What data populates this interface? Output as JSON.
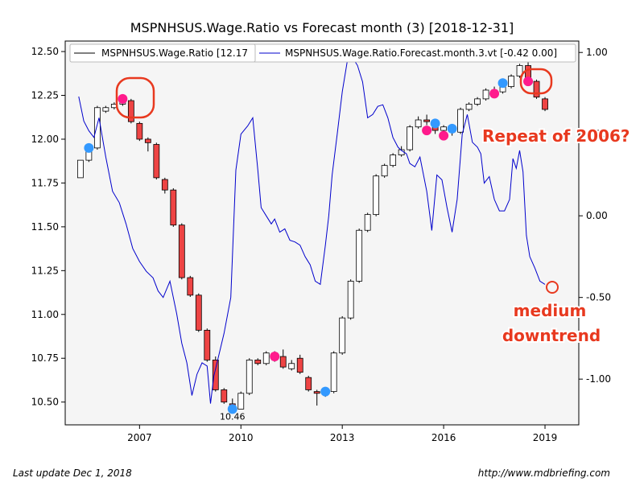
{
  "chart_data": {
    "type": "candlestick+line",
    "title": "MSPNHSUS.Wage.Ratio vs Forecast month (3)  [2018-12-31]",
    "legend": [
      {
        "label": "MSPNHSUS.Wage.Ratio [12.17",
        "color": "#000000"
      },
      {
        "label": "MSPNHSUS.Wage.Ratio.Forecast.month.3.vt [-0.42 0.00]",
        "color": "#0000cc"
      }
    ],
    "legend_position": "top",
    "x_ticks": [
      "2007",
      "2010",
      "2013",
      "2016",
      "2019"
    ],
    "x_range": [
      2004.8,
      2020.0
    ],
    "y_left": {
      "ticks": [
        "12.50",
        "12.25",
        "12.00",
        "11.75",
        "11.50",
        "11.25",
        "11.00",
        "10.75",
        "10.50"
      ],
      "range": [
        10.37,
        12.56
      ]
    },
    "y_right": {
      "ticks": [
        "1.00",
        "0.50",
        "0.00",
        "-0.50",
        "-1.00"
      ],
      "range": [
        -1.28,
        1.07
      ]
    },
    "grid": false,
    "min_label": "10.46",
    "candles": [
      [
        2005.25,
        11.78,
        11.88,
        11.88,
        11.78,
        "w"
      ],
      [
        2005.5,
        11.88,
        11.95,
        11.96,
        11.87,
        "w"
      ],
      [
        2005.75,
        11.95,
        12.18,
        12.19,
        11.94,
        "w"
      ],
      [
        2006.0,
        12.18,
        12.16,
        12.19,
        12.15,
        "w"
      ],
      [
        2006.25,
        12.18,
        12.2,
        12.21,
        12.17,
        "w"
      ],
      [
        2006.5,
        12.2,
        12.23,
        12.24,
        12.19,
        "w"
      ],
      [
        2006.75,
        12.22,
        12.1,
        12.23,
        12.09,
        "r"
      ],
      [
        2007.0,
        12.09,
        12.0,
        12.1,
        11.99,
        "r"
      ],
      [
        2007.25,
        12.0,
        11.98,
        12.01,
        11.93,
        "r"
      ],
      [
        2007.5,
        11.97,
        11.78,
        11.98,
        11.77,
        "r"
      ],
      [
        2007.75,
        11.77,
        11.71,
        11.78,
        11.69,
        "r"
      ],
      [
        2008.0,
        11.71,
        11.51,
        11.72,
        11.5,
        "r"
      ],
      [
        2008.25,
        11.51,
        11.21,
        11.52,
        11.2,
        "r"
      ],
      [
        2008.5,
        11.21,
        11.11,
        11.22,
        11.1,
        "r"
      ],
      [
        2008.75,
        11.11,
        10.91,
        11.12,
        10.9,
        "r"
      ],
      [
        2009.0,
        10.91,
        10.74,
        10.92,
        10.73,
        "r"
      ],
      [
        2009.25,
        10.74,
        10.57,
        10.76,
        10.56,
        "r"
      ],
      [
        2009.5,
        10.57,
        10.5,
        10.58,
        10.49,
        "r"
      ],
      [
        2009.75,
        10.49,
        10.48,
        10.52,
        10.46,
        "r"
      ],
      [
        2010.0,
        10.46,
        10.55,
        10.56,
        10.46,
        "w"
      ],
      [
        2010.25,
        10.55,
        10.74,
        10.75,
        10.54,
        "w"
      ],
      [
        2010.5,
        10.74,
        10.72,
        10.75,
        10.71,
        "r"
      ],
      [
        2010.75,
        10.72,
        10.78,
        10.79,
        10.71,
        "w"
      ],
      [
        2011.0,
        10.78,
        10.74,
        10.79,
        10.73,
        "r"
      ],
      [
        2011.25,
        10.76,
        10.7,
        10.8,
        10.69,
        "r"
      ],
      [
        2011.5,
        10.69,
        10.72,
        10.74,
        10.68,
        "w"
      ],
      [
        2011.75,
        10.75,
        10.67,
        10.77,
        10.66,
        "r"
      ],
      [
        2012.0,
        10.64,
        10.57,
        10.65,
        10.56,
        "r"
      ],
      [
        2012.25,
        10.56,
        10.55,
        10.57,
        10.48,
        "r"
      ],
      [
        2012.5,
        10.55,
        10.55,
        10.57,
        10.53,
        "w"
      ],
      [
        2012.75,
        10.56,
        10.78,
        10.79,
        10.55,
        "w"
      ],
      [
        2013.0,
        10.78,
        10.98,
        10.99,
        10.77,
        "w"
      ],
      [
        2013.25,
        10.98,
        11.19,
        11.2,
        10.97,
        "w"
      ],
      [
        2013.5,
        11.19,
        11.48,
        11.49,
        11.18,
        "w"
      ],
      [
        2013.75,
        11.48,
        11.57,
        11.58,
        11.47,
        "w"
      ],
      [
        2014.0,
        11.57,
        11.79,
        11.8,
        11.56,
        "w"
      ],
      [
        2014.25,
        11.79,
        11.85,
        11.86,
        11.78,
        "w"
      ],
      [
        2014.5,
        11.85,
        11.91,
        11.92,
        11.84,
        "w"
      ],
      [
        2014.75,
        11.91,
        11.94,
        11.96,
        11.9,
        "w"
      ],
      [
        2015.0,
        11.94,
        12.07,
        12.08,
        11.93,
        "w"
      ],
      [
        2015.25,
        12.07,
        12.11,
        12.13,
        12.06,
        "w"
      ],
      [
        2015.5,
        12.11,
        12.1,
        12.14,
        12.08,
        "r"
      ],
      [
        2015.75,
        12.1,
        12.05,
        12.11,
        12.03,
        "r"
      ],
      [
        2016.0,
        12.05,
        12.07,
        12.08,
        12.0,
        "w"
      ],
      [
        2016.25,
        12.07,
        12.04,
        12.08,
        12.02,
        "r"
      ],
      [
        2016.5,
        12.04,
        12.17,
        12.18,
        12.03,
        "w"
      ],
      [
        2016.75,
        12.17,
        12.2,
        12.21,
        12.16,
        "w"
      ],
      [
        2017.0,
        12.2,
        12.23,
        12.24,
        12.19,
        "w"
      ],
      [
        2017.25,
        12.23,
        12.28,
        12.29,
        12.22,
        "w"
      ],
      [
        2017.5,
        12.28,
        12.27,
        12.3,
        12.26,
        "r"
      ],
      [
        2017.75,
        12.27,
        12.3,
        12.31,
        12.26,
        "w"
      ],
      [
        2018.0,
        12.3,
        12.36,
        12.37,
        12.29,
        "w"
      ],
      [
        2018.25,
        12.36,
        12.42,
        12.43,
        12.35,
        "w"
      ],
      [
        2018.5,
        12.42,
        12.33,
        12.44,
        12.32,
        "r"
      ],
      [
        2018.75,
        12.33,
        12.24,
        12.34,
        12.23,
        "r"
      ],
      [
        2019.0,
        12.23,
        12.17,
        12.24,
        12.16,
        "r"
      ]
    ],
    "forecast_series": [
      [
        2005.2,
        0.73
      ],
      [
        2005.35,
        0.58
      ],
      [
        2005.5,
        0.52
      ],
      [
        2005.65,
        0.48
      ],
      [
        2005.8,
        0.6
      ],
      [
        2006.0,
        0.36
      ],
      [
        2006.2,
        0.15
      ],
      [
        2006.4,
        0.08
      ],
      [
        2006.6,
        -0.05
      ],
      [
        2006.8,
        -0.2
      ],
      [
        2007.0,
        -0.28
      ],
      [
        2007.2,
        -0.34
      ],
      [
        2007.4,
        -0.38
      ],
      [
        2007.55,
        -0.46
      ],
      [
        2007.7,
        -0.5
      ],
      [
        2007.9,
        -0.4
      ],
      [
        2008.1,
        -0.6
      ],
      [
        2008.25,
        -0.78
      ],
      [
        2008.4,
        -0.9
      ],
      [
        2008.55,
        -1.1
      ],
      [
        2008.7,
        -0.97
      ],
      [
        2008.85,
        -0.9
      ],
      [
        2009.0,
        -0.92
      ],
      [
        2009.1,
        -1.15
      ],
      [
        2009.2,
        -0.98
      ],
      [
        2009.35,
        -0.85
      ],
      [
        2009.5,
        -0.72
      ],
      [
        2009.7,
        -0.5
      ],
      [
        2009.85,
        0.28
      ],
      [
        2010.0,
        0.5
      ],
      [
        2010.2,
        0.55
      ],
      [
        2010.35,
        0.6
      ],
      [
        2010.5,
        0.28
      ],
      [
        2010.6,
        0.05
      ],
      [
        2010.75,
        0.0
      ],
      [
        2010.9,
        -0.05
      ],
      [
        2011.0,
        -0.02
      ],
      [
        2011.15,
        -0.1
      ],
      [
        2011.3,
        -0.08
      ],
      [
        2011.45,
        -0.15
      ],
      [
        2011.6,
        -0.16
      ],
      [
        2011.75,
        -0.18
      ],
      [
        2011.9,
        -0.25
      ],
      [
        2012.05,
        -0.3
      ],
      [
        2012.2,
        -0.4
      ],
      [
        2012.35,
        -0.42
      ],
      [
        2012.5,
        -0.18
      ],
      [
        2012.6,
        0.0
      ],
      [
        2012.7,
        0.25
      ],
      [
        2012.85,
        0.5
      ],
      [
        2013.0,
        0.76
      ],
      [
        2013.15,
        0.95
      ],
      [
        2013.3,
        0.97
      ],
      [
        2013.45,
        0.92
      ],
      [
        2013.6,
        0.82
      ],
      [
        2013.75,
        0.6
      ],
      [
        2013.9,
        0.62
      ],
      [
        2014.05,
        0.67
      ],
      [
        2014.2,
        0.68
      ],
      [
        2014.35,
        0.6
      ],
      [
        2014.5,
        0.48
      ],
      [
        2014.65,
        0.42
      ],
      [
        2014.75,
        0.4
      ],
      [
        2014.9,
        0.38
      ],
      [
        2015.0,
        0.32
      ],
      [
        2015.15,
        0.3
      ],
      [
        2015.3,
        0.36
      ],
      [
        2015.5,
        0.15
      ],
      [
        2015.65,
        -0.09
      ],
      [
        2015.8,
        0.25
      ],
      [
        2015.95,
        0.22
      ],
      [
        2016.1,
        0.05
      ],
      [
        2016.25,
        -0.1
      ],
      [
        2016.4,
        0.1
      ],
      [
        2016.55,
        0.5
      ],
      [
        2016.7,
        0.62
      ],
      [
        2016.85,
        0.45
      ],
      [
        2017.0,
        0.42
      ],
      [
        2017.1,
        0.38
      ],
      [
        2017.2,
        0.2
      ],
      [
        2017.35,
        0.24
      ],
      [
        2017.5,
        0.1
      ],
      [
        2017.65,
        0.03
      ],
      [
        2017.8,
        0.03
      ],
      [
        2017.95,
        0.1
      ],
      [
        2018.05,
        0.35
      ],
      [
        2018.15,
        0.29
      ],
      [
        2018.25,
        0.4
      ],
      [
        2018.35,
        0.27
      ],
      [
        2018.45,
        -0.12
      ],
      [
        2018.55,
        -0.25
      ],
      [
        2018.7,
        -0.32
      ],
      [
        2018.85,
        -0.4
      ],
      [
        2019.0,
        -0.42
      ]
    ],
    "markers": [
      {
        "x": 2005.5,
        "y": 11.95,
        "color": "#3399ff"
      },
      {
        "x": 2006.5,
        "y": 12.23,
        "color": "#ff1a8c"
      },
      {
        "x": 2009.75,
        "y": 10.46,
        "color": "#3399ff"
      },
      {
        "x": 2011.0,
        "y": 10.76,
        "color": "#ff1a8c"
      },
      {
        "x": 2012.5,
        "y": 10.56,
        "color": "#3399ff"
      },
      {
        "x": 2015.5,
        "y": 12.05,
        "color": "#ff1a8c"
      },
      {
        "x": 2015.75,
        "y": 12.09,
        "color": "#3399ff"
      },
      {
        "x": 2016.0,
        "y": 12.02,
        "color": "#ff1a8c"
      },
      {
        "x": 2016.25,
        "y": 12.06,
        "color": "#3399ff"
      },
      {
        "x": 2017.5,
        "y": 12.26,
        "color": "#ff1a8c"
      },
      {
        "x": 2017.75,
        "y": 12.32,
        "color": "#3399ff"
      },
      {
        "x": 2018.5,
        "y": 12.33,
        "color": "#ff1a8c"
      }
    ],
    "colors": {
      "down_candle": "#ee4444",
      "up_candle": "#ffffff",
      "forecast_line": "#0000cc",
      "annotation": "#e8391f",
      "plot_bg": "#f5f5f5"
    }
  },
  "annotations": {
    "repeat": "Repeat of 2006?",
    "medium": "medium",
    "downtrend": "downtrend"
  },
  "footer": {
    "left": "Last update Dec  1, 2018",
    "right": "http://www.mdbriefing.com"
  }
}
